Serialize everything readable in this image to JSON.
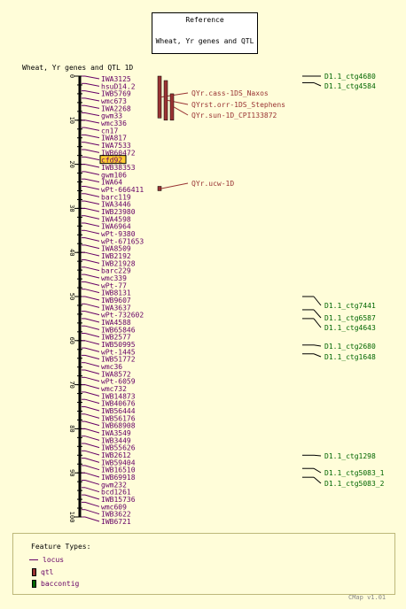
{
  "reference": {
    "title": "Reference",
    "map_name": "Wheat, Yr genes and QTL"
  },
  "map": {
    "title": "Wheat, Yr genes and QTL 1D",
    "axis_ticks": [
      "0",
      "10",
      "20",
      "30",
      "40",
      "50",
      "60",
      "70",
      "80",
      "90",
      "100"
    ],
    "axis_range": [
      0,
      100
    ],
    "axis_color": "#000000",
    "marker_color": "#660066",
    "highlight_marker": "cfd92",
    "highlight_fill": "#ffcc33",
    "markers": [
      "IWA3125",
      "hsuD14.2",
      "IWB5769",
      "wmc673",
      "IWA2268",
      "gwm33",
      "wmc336",
      "cn17",
      "IWA817",
      "IWA7533",
      "IWB60472",
      "cfd92",
      "IWB38353",
      "gwm106",
      "IWA64",
      "wPt-666411",
      "barc119",
      "IWA3446",
      "IWB23980",
      "IWA4598",
      "IWA6964",
      "wPt-9380",
      "wPt-671653",
      "IWA8509",
      "IWB2192",
      "IWB21928",
      "barc229",
      "wmc339",
      "wPt-77",
      "IWB8131",
      "IWB9607",
      "IWA3637",
      "wPt-732602",
      "IWA4588",
      "IWB65846",
      "IWB2577",
      "IWB50995",
      "wPt-1445",
      "IWB51772",
      "wmc36",
      "IWA8572",
      "wPt-6059",
      "wmc732",
      "IWB14873",
      "IWB40676",
      "IWB56444",
      "IWB56176",
      "IWB68908",
      "IWA3549",
      "IWB3449",
      "IWB55626",
      "IWB2612",
      "IWB59404",
      "IWB16510",
      "IWB69918",
      "gwm232",
      "bcd1261",
      "IWB15736",
      "wmc609",
      "IWB3622",
      "IWB6721"
    ]
  },
  "qtl": {
    "color": "#993333",
    "items": [
      {
        "label": "QYr.cass-1DS_Naxos",
        "start": 0,
        "end": 9.5
      },
      {
        "label": "QYrst.orr-1DS_Stephens",
        "start": 1,
        "end": 10
      },
      {
        "label": "QYr.sun-1D_CPI133872",
        "start": 4,
        "end": 10
      },
      {
        "label": "QYr.ucw-1D",
        "start": 25,
        "end": 26
      }
    ]
  },
  "baccontigs": {
    "color": "#006600",
    "items": [
      {
        "label": "D1.1_ctg4680",
        "pos": 0
      },
      {
        "label": "D1.1_ctg4584",
        "pos": 1.5
      },
      {
        "label": "D1.1_ctg7441",
        "pos": 50
      },
      {
        "label": "D1.1_ctg6587",
        "pos": 53
      },
      {
        "label": "D1.1_ctg4643",
        "pos": 55
      },
      {
        "label": "D1.1_ctg2680",
        "pos": 61
      },
      {
        "label": "D1.1_ctg1648",
        "pos": 63
      },
      {
        "label": "D1.1_ctg1298",
        "pos": 86
      },
      {
        "label": "D1.1_ctg5083_1",
        "pos": 89
      },
      {
        "label": "D1.1_ctg5083_2",
        "pos": 91
      }
    ]
  },
  "legend": {
    "title": "Feature Types:",
    "items": [
      {
        "label": "locus",
        "color": "#660066"
      },
      {
        "label": "qtl",
        "color": "#993333"
      },
      {
        "label": "baccontig",
        "color": "#006600"
      }
    ]
  },
  "footer": {
    "version": "CMap v1.01"
  }
}
